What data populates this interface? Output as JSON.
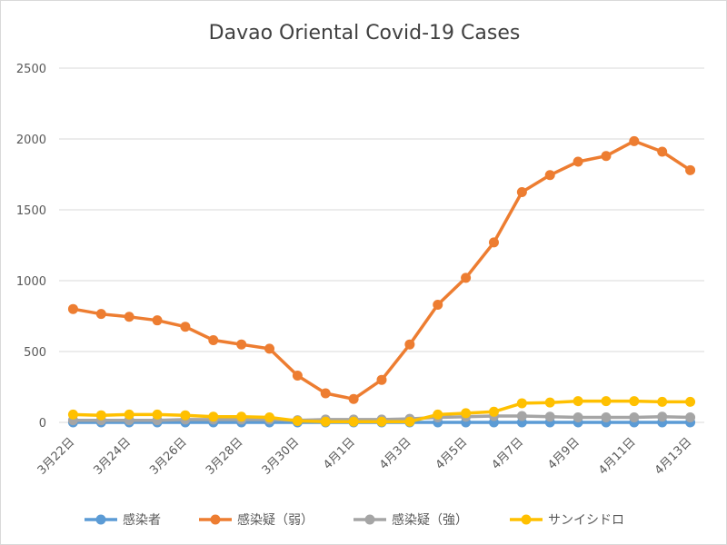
{
  "chart_data": {
    "type": "line",
    "title": "Davao Oriental Covid-19 Cases",
    "xlabel": "",
    "ylabel": "",
    "ylim": [
      0,
      2500
    ],
    "yticks": [
      "0",
      "500",
      "1000",
      "1500",
      "2000",
      "2500"
    ],
    "grid": true,
    "legend_position": "bottom",
    "categories": [
      "3月22日",
      "3月23日",
      "3月24日",
      "3月25日",
      "3月26日",
      "3月27日",
      "3月28日",
      "3月29日",
      "3月30日",
      "3月31日",
      "4月1日",
      "4月2日",
      "4月3日",
      "4月4日",
      "4月5日",
      "4月6日",
      "4月7日",
      "4月8日",
      "4月9日",
      "4月10日",
      "4月11日",
      "4月12日",
      "4月13日"
    ],
    "xtick_labels": [
      "3月22日",
      "3月24日",
      "3月26日",
      "3月28日",
      "3月30日",
      "4月1日",
      "4月3日",
      "4月5日",
      "4月7日",
      "4月9日",
      "4月11日",
      "4月13日"
    ],
    "series": [
      {
        "name": "感染者",
        "color": "#5b9bd5",
        "values": [
          0,
          0,
          0,
          0,
          0,
          0,
          0,
          0,
          0,
          0,
          0,
          0,
          0,
          0,
          0,
          0,
          0,
          0,
          0,
          0,
          0,
          0,
          0
        ]
      },
      {
        "name": "感染疑（弱）",
        "color": "#ed7d31",
        "values": [
          800,
          765,
          745,
          720,
          675,
          580,
          550,
          520,
          330,
          205,
          165,
          300,
          550,
          830,
          1020,
          1270,
          1625,
          1745,
          1840,
          1880,
          1985,
          1910,
          1780
        ]
      },
      {
        "name": "感染疑（強）",
        "color": "#a5a5a5",
        "values": [
          15,
          15,
          15,
          15,
          20,
          20,
          20,
          20,
          15,
          20,
          20,
          20,
          25,
          35,
          40,
          45,
          45,
          40,
          35,
          35,
          35,
          40,
          35
        ]
      },
      {
        "name": "サンイシドロ",
        "color": "#ffc000",
        "values": [
          55,
          50,
          55,
          55,
          50,
          40,
          40,
          35,
          10,
          5,
          5,
          5,
          5,
          55,
          65,
          75,
          135,
          140,
          150,
          150,
          150,
          145,
          145
        ]
      }
    ]
  }
}
